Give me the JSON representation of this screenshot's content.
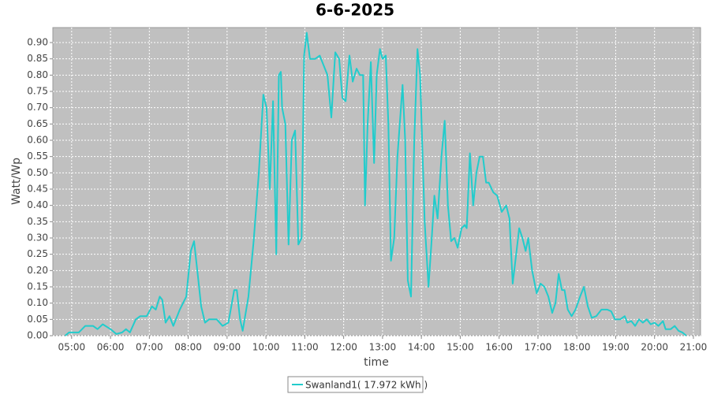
{
  "chart_data": {
    "type": "line",
    "title": "6-6-2025",
    "xlabel": "time",
    "ylabel": "Watt/Wp",
    "x": [
      "04:50",
      "04:56",
      "05:11",
      "05:21",
      "05:33",
      "05:40",
      "05:48",
      "06:00",
      "06:09",
      "06:18",
      "06:24",
      "06:30",
      "06:39",
      "06:46",
      "06:56",
      "07:04",
      "07:10",
      "07:16",
      "07:20",
      "07:25",
      "07:31",
      "07:37",
      "07:47",
      "07:57",
      "08:04",
      "08:09",
      "08:14",
      "08:20",
      "08:26",
      "08:32",
      "08:44",
      "08:53",
      "09:02",
      "09:11",
      "09:15",
      "09:20",
      "09:24",
      "09:33",
      "09:41",
      "09:49",
      "09:56",
      "10:01",
      "10:06",
      "10:11",
      "10:16",
      "10:20",
      "10:23",
      "10:25",
      "10:30",
      "10:35",
      "10:40",
      "10:45",
      "10:50",
      "10:55",
      "10:59",
      "11:03",
      "11:08",
      "11:16",
      "11:23",
      "11:29",
      "11:35",
      "11:41",
      "11:47",
      "11:53",
      "11:58",
      "12:03",
      "12:09",
      "12:14",
      "12:20",
      "12:25",
      "12:30",
      "12:33",
      "12:37",
      "12:42",
      "12:47",
      "12:51",
      "12:56",
      "13:00",
      "13:05",
      "13:09",
      "13:13",
      "13:18",
      "13:23",
      "13:31",
      "13:35",
      "13:39",
      "13:44",
      "13:49",
      "13:54",
      "13:58",
      "14:05",
      "14:11",
      "14:16",
      "14:20",
      "14:25",
      "14:31",
      "14:36",
      "14:41",
      "14:46",
      "14:51",
      "14:56",
      "15:02",
      "15:07",
      "15:10",
      "15:15",
      "15:20",
      "15:25",
      "15:30",
      "15:35",
      "15:40",
      "15:44",
      "15:51",
      "15:57",
      "16:04",
      "16:11",
      "16:16",
      "16:21",
      "16:27",
      "16:31",
      "16:36",
      "16:41",
      "16:45",
      "16:51",
      "16:58",
      "17:04",
      "17:10",
      "17:16",
      "17:22",
      "17:27",
      "17:32",
      "17:37",
      "17:41",
      "17:46",
      "17:52",
      "17:58",
      "18:05",
      "18:11",
      "18:17",
      "18:23",
      "18:30",
      "18:38",
      "18:47",
      "18:53",
      "18:59",
      "19:07",
      "19:14",
      "19:18",
      "19:24",
      "19:30",
      "19:36",
      "19:42",
      "19:48",
      "19:54",
      "20:00",
      "20:06",
      "20:13",
      "20:17",
      "20:25",
      "20:31",
      "20:37",
      "20:43",
      "20:49"
    ],
    "series": [
      {
        "name": "Swanland1( 17.972 kWh )",
        "color": "#22cccc",
        "values": [
          0,
          0.01,
          0.01,
          0.03,
          0.03,
          0.02,
          0.035,
          0.02,
          0.005,
          0.01,
          0.02,
          0.01,
          0.05,
          0.06,
          0.06,
          0.09,
          0.08,
          0.12,
          0.11,
          0.04,
          0.06,
          0.03,
          0.08,
          0.12,
          0.26,
          0.29,
          0.2,
          0.09,
          0.04,
          0.05,
          0.05,
          0.03,
          0.04,
          0.14,
          0.14,
          0.05,
          0.015,
          0.12,
          0.29,
          0.5,
          0.74,
          0.7,
          0.45,
          0.72,
          0.25,
          0.8,
          0.81,
          0.7,
          0.65,
          0.28,
          0.6,
          0.63,
          0.28,
          0.3,
          0.86,
          0.93,
          0.85,
          0.85,
          0.86,
          0.83,
          0.8,
          0.67,
          0.87,
          0.85,
          0.73,
          0.72,
          0.86,
          0.78,
          0.82,
          0.8,
          0.8,
          0.4,
          0.65,
          0.84,
          0.53,
          0.8,
          0.88,
          0.85,
          0.86,
          0.65,
          0.23,
          0.3,
          0.55,
          0.77,
          0.6,
          0.17,
          0.12,
          0.6,
          0.88,
          0.8,
          0.35,
          0.15,
          0.3,
          0.43,
          0.36,
          0.55,
          0.66,
          0.4,
          0.29,
          0.3,
          0.27,
          0.33,
          0.34,
          0.33,
          0.56,
          0.4,
          0.5,
          0.55,
          0.55,
          0.47,
          0.47,
          0.44,
          0.43,
          0.38,
          0.4,
          0.36,
          0.16,
          0.26,
          0.33,
          0.3,
          0.26,
          0.3,
          0.2,
          0.13,
          0.16,
          0.15,
          0.12,
          0.07,
          0.1,
          0.19,
          0.14,
          0.14,
          0.08,
          0.06,
          0.08,
          0.12,
          0.15,
          0.09,
          0.055,
          0.06,
          0.08,
          0.08,
          0.075,
          0.05,
          0.05,
          0.06,
          0.04,
          0.045,
          0.03,
          0.05,
          0.04,
          0.05,
          0.035,
          0.04,
          0.03,
          0.045,
          0.02,
          0.02,
          0.03,
          0.015,
          0.01,
          0
        ]
      }
    ],
    "xlim": [
      "04:31",
      "21:11"
    ],
    "xticks": [
      "05:00",
      "06:00",
      "07:00",
      "08:00",
      "09:00",
      "10:00",
      "11:00",
      "12:00",
      "13:00",
      "14:00",
      "15:00",
      "16:00",
      "17:00",
      "18:00",
      "19:00",
      "20:00",
      "21:00"
    ],
    "ylim": [
      0,
      0.946
    ],
    "yticks": [
      {
        "value": 0,
        "label": "0.00"
      },
      0.05,
      {
        "value": 0.1,
        "label": "0.10"
      },
      0.15,
      {
        "value": 0.2,
        "label": "0.20"
      },
      0.25,
      {
        "value": 0.3,
        "label": "0.30"
      },
      0.35,
      {
        "value": 0.4,
        "label": "0.40"
      },
      0.45,
      {
        "value": 0.5,
        "label": "0.50"
      },
      0.55,
      {
        "value": 0.6,
        "label": "0.60"
      },
      0.65,
      {
        "value": 0.7,
        "label": "0.70"
      },
      0.75,
      {
        "value": 0.8,
        "label": "0.80"
      },
      0.85,
      {
        "value": 0.9,
        "label": "0.90"
      }
    ],
    "grid": true,
    "legend": "bottom"
  }
}
